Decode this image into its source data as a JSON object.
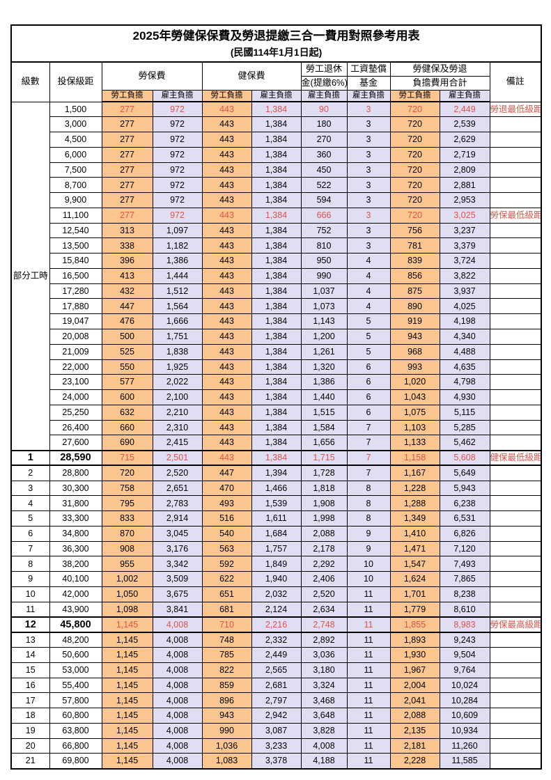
{
  "title": {
    "main": "2025年勞健保保費及勞退提繳三合一費用對照參考用表",
    "sub": "(民國114年1月1日起)"
  },
  "header": {
    "level": "級數",
    "bracket": "投保級距",
    "labor_insurance": "勞保費",
    "health_insurance": "健保費",
    "pension_line1": "勞工退休",
    "pension_line2": "金(提繳6%)",
    "wage_fund_line1": "工資墊償",
    "wage_fund_line2": "基金",
    "total_line1": "勞健保及勞退",
    "total_line2": "負擔費用合計",
    "remark": "備註",
    "employee_label": "勞工負擔",
    "employer_label": "雇主負擔"
  },
  "part_time": {
    "label": "部分工時",
    "rowspan": 23
  },
  "colors": {
    "employee_bg": "#FBC58F",
    "employer_bg": "#E0DEF2",
    "red_text": "#E0524A",
    "border": "#000000"
  },
  "rows": [
    {
      "level": "",
      "salary": "1,500",
      "values": [
        "277",
        "972",
        "443",
        "1,384",
        "90",
        "3",
        "720",
        "2,449"
      ],
      "remark": "勞退最低級距",
      "style": "red"
    },
    {
      "level": "",
      "salary": "3,000",
      "values": [
        "277",
        "972",
        "443",
        "1,384",
        "180",
        "3",
        "720",
        "2,539"
      ],
      "remark": "",
      "style": ""
    },
    {
      "level": "",
      "salary": "4,500",
      "values": [
        "277",
        "972",
        "443",
        "1,384",
        "270",
        "3",
        "720",
        "2,629"
      ],
      "remark": "",
      "style": ""
    },
    {
      "level": "",
      "salary": "6,000",
      "values": [
        "277",
        "972",
        "443",
        "1,384",
        "360",
        "3",
        "720",
        "2,719"
      ],
      "remark": "",
      "style": ""
    },
    {
      "level": "",
      "salary": "7,500",
      "values": [
        "277",
        "972",
        "443",
        "1,384",
        "450",
        "3",
        "720",
        "2,809"
      ],
      "remark": "",
      "style": ""
    },
    {
      "level": "",
      "salary": "8,700",
      "values": [
        "277",
        "972",
        "443",
        "1,384",
        "522",
        "3",
        "720",
        "2,881"
      ],
      "remark": "",
      "style": ""
    },
    {
      "level": "",
      "salary": "9,900",
      "values": [
        "277",
        "972",
        "443",
        "1,384",
        "594",
        "3",
        "720",
        "2,953"
      ],
      "remark": "",
      "style": ""
    },
    {
      "level": "",
      "salary": "11,100",
      "values": [
        "277",
        "972",
        "443",
        "1,384",
        "666",
        "3",
        "720",
        "3,025"
      ],
      "remark": "勞保最低級距",
      "style": "red"
    },
    {
      "level": "",
      "salary": "12,540",
      "values": [
        "313",
        "1,097",
        "443",
        "1,384",
        "752",
        "3",
        "756",
        "3,237"
      ],
      "remark": "",
      "style": ""
    },
    {
      "level": "",
      "salary": "13,500",
      "values": [
        "338",
        "1,182",
        "443",
        "1,384",
        "810",
        "3",
        "781",
        "3,379"
      ],
      "remark": "",
      "style": ""
    },
    {
      "level": "",
      "salary": "15,840",
      "values": [
        "396",
        "1,386",
        "443",
        "1,384",
        "950",
        "4",
        "839",
        "3,724"
      ],
      "remark": "",
      "style": ""
    },
    {
      "level": "",
      "salary": "16,500",
      "values": [
        "413",
        "1,444",
        "443",
        "1,384",
        "990",
        "4",
        "856",
        "3,822"
      ],
      "remark": "",
      "style": ""
    },
    {
      "level": "",
      "salary": "17,280",
      "values": [
        "432",
        "1,512",
        "443",
        "1,384",
        "1,037",
        "4",
        "875",
        "3,937"
      ],
      "remark": "",
      "style": ""
    },
    {
      "level": "",
      "salary": "17,880",
      "values": [
        "447",
        "1,564",
        "443",
        "1,384",
        "1,073",
        "4",
        "890",
        "4,025"
      ],
      "remark": "",
      "style": ""
    },
    {
      "level": "",
      "salary": "19,047",
      "values": [
        "476",
        "1,666",
        "443",
        "1,384",
        "1,143",
        "5",
        "919",
        "4,198"
      ],
      "remark": "",
      "style": ""
    },
    {
      "level": "",
      "salary": "20,008",
      "values": [
        "500",
        "1,751",
        "443",
        "1,384",
        "1,200",
        "5",
        "943",
        "4,340"
      ],
      "remark": "",
      "style": ""
    },
    {
      "level": "",
      "salary": "21,009",
      "values": [
        "525",
        "1,838",
        "443",
        "1,384",
        "1,261",
        "5",
        "968",
        "4,488"
      ],
      "remark": "",
      "style": ""
    },
    {
      "level": "",
      "salary": "22,000",
      "values": [
        "550",
        "1,925",
        "443",
        "1,384",
        "1,320",
        "6",
        "993",
        "4,635"
      ],
      "remark": "",
      "style": ""
    },
    {
      "level": "",
      "salary": "23,100",
      "values": [
        "577",
        "2,022",
        "443",
        "1,384",
        "1,386",
        "6",
        "1,020",
        "4,798"
      ],
      "remark": "",
      "style": ""
    },
    {
      "level": "",
      "salary": "24,000",
      "values": [
        "600",
        "2,100",
        "443",
        "1,384",
        "1,440",
        "6",
        "1,043",
        "4,930"
      ],
      "remark": "",
      "style": ""
    },
    {
      "level": "",
      "salary": "25,250",
      "values": [
        "632",
        "2,210",
        "443",
        "1,384",
        "1,515",
        "6",
        "1,075",
        "5,115"
      ],
      "remark": "",
      "style": ""
    },
    {
      "level": "",
      "salary": "26,400",
      "values": [
        "660",
        "2,310",
        "443",
        "1,384",
        "1,584",
        "7",
        "1,103",
        "5,285"
      ],
      "remark": "",
      "style": ""
    },
    {
      "level": "",
      "salary": "27,600",
      "values": [
        "690",
        "2,415",
        "443",
        "1,384",
        "1,656",
        "7",
        "1,133",
        "5,462"
      ],
      "remark": "",
      "style": ""
    },
    {
      "level": "1",
      "salary": "28,590",
      "values": [
        "715",
        "2,501",
        "443",
        "1,384",
        "1,715",
        "7",
        "1,158",
        "5,608"
      ],
      "remark": "健保最低級距",
      "style": "red-bold"
    },
    {
      "level": "2",
      "salary": "28,800",
      "values": [
        "720",
        "2,520",
        "447",
        "1,394",
        "1,728",
        "7",
        "1,167",
        "5,649"
      ],
      "remark": "",
      "style": ""
    },
    {
      "level": "3",
      "salary": "30,300",
      "values": [
        "758",
        "2,651",
        "470",
        "1,466",
        "1,818",
        "8",
        "1,228",
        "5,943"
      ],
      "remark": "",
      "style": ""
    },
    {
      "level": "4",
      "salary": "31,800",
      "values": [
        "795",
        "2,783",
        "493",
        "1,539",
        "1,908",
        "8",
        "1,288",
        "6,238"
      ],
      "remark": "",
      "style": ""
    },
    {
      "level": "5",
      "salary": "33,300",
      "values": [
        "833",
        "2,914",
        "516",
        "1,611",
        "1,998",
        "8",
        "1,349",
        "6,531"
      ],
      "remark": "",
      "style": ""
    },
    {
      "level": "6",
      "salary": "34,800",
      "values": [
        "870",
        "3,045",
        "540",
        "1,684",
        "2,088",
        "9",
        "1,410",
        "6,826"
      ],
      "remark": "",
      "style": ""
    },
    {
      "level": "7",
      "salary": "36,300",
      "values": [
        "908",
        "3,176",
        "563",
        "1,757",
        "2,178",
        "9",
        "1,471",
        "7,120"
      ],
      "remark": "",
      "style": ""
    },
    {
      "level": "8",
      "salary": "38,200",
      "values": [
        "955",
        "3,342",
        "592",
        "1,849",
        "2,292",
        "10",
        "1,547",
        "7,493"
      ],
      "remark": "",
      "style": ""
    },
    {
      "level": "9",
      "salary": "40,100",
      "values": [
        "1,002",
        "3,509",
        "622",
        "1,940",
        "2,406",
        "10",
        "1,624",
        "7,865"
      ],
      "remark": "",
      "style": ""
    },
    {
      "level": "10",
      "salary": "42,000",
      "values": [
        "1,050",
        "3,675",
        "651",
        "2,032",
        "2,520",
        "11",
        "1,701",
        "8,238"
      ],
      "remark": "",
      "style": ""
    },
    {
      "level": "11",
      "salary": "43,900",
      "values": [
        "1,098",
        "3,841",
        "681",
        "2,124",
        "2,634",
        "11",
        "1,779",
        "8,610"
      ],
      "remark": "",
      "style": ""
    },
    {
      "level": "12",
      "salary": "45,800",
      "values": [
        "1,145",
        "4,008",
        "710",
        "2,216",
        "2,748",
        "11",
        "1,855",
        "8,983"
      ],
      "remark": "勞保最高級距",
      "style": "red-bold"
    },
    {
      "level": "13",
      "salary": "48,200",
      "values": [
        "1,145",
        "4,008",
        "748",
        "2,332",
        "2,892",
        "11",
        "1,893",
        "9,243"
      ],
      "remark": "",
      "style": ""
    },
    {
      "level": "14",
      "salary": "50,600",
      "values": [
        "1,145",
        "4,008",
        "785",
        "2,449",
        "3,036",
        "11",
        "1,930",
        "9,504"
      ],
      "remark": "",
      "style": ""
    },
    {
      "level": "15",
      "salary": "53,000",
      "values": [
        "1,145",
        "4,008",
        "822",
        "2,565",
        "3,180",
        "11",
        "1,967",
        "9,764"
      ],
      "remark": "",
      "style": ""
    },
    {
      "level": "16",
      "salary": "55,400",
      "values": [
        "1,145",
        "4,008",
        "859",
        "2,681",
        "3,324",
        "11",
        "2,004",
        "10,024"
      ],
      "remark": "",
      "style": ""
    },
    {
      "level": "17",
      "salary": "57,800",
      "values": [
        "1,145",
        "4,008",
        "896",
        "2,797",
        "3,468",
        "11",
        "2,041",
        "10,284"
      ],
      "remark": "",
      "style": ""
    },
    {
      "level": "18",
      "salary": "60,800",
      "values": [
        "1,145",
        "4,008",
        "943",
        "2,942",
        "3,648",
        "11",
        "2,088",
        "10,609"
      ],
      "remark": "",
      "style": ""
    },
    {
      "level": "19",
      "salary": "63,800",
      "values": [
        "1,145",
        "4,008",
        "990",
        "3,087",
        "3,828",
        "11",
        "2,135",
        "10,934"
      ],
      "remark": "",
      "style": ""
    },
    {
      "level": "20",
      "salary": "66,800",
      "values": [
        "1,145",
        "4,008",
        "1,036",
        "3,233",
        "4,008",
        "11",
        "2,181",
        "11,260"
      ],
      "remark": "",
      "style": ""
    },
    {
      "level": "21",
      "salary": "69,800",
      "values": [
        "1,145",
        "4,008",
        "1,083",
        "3,378",
        "4,188",
        "11",
        "2,228",
        "11,585"
      ],
      "remark": "",
      "style": ""
    }
  ]
}
